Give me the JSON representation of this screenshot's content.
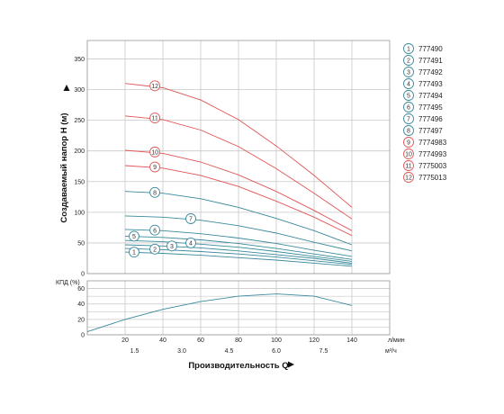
{
  "chart_data": [
    {
      "type": "line",
      "ylabel": "Создаваемый напор Н (м)",
      "ylim": [
        0,
        380
      ],
      "y_ticks": [
        "0",
        "50",
        "100",
        "150",
        "200",
        "250",
        "300",
        "350"
      ],
      "xlim_lpm": [
        0,
        160
      ],
      "grid": true,
      "legend_position": "right",
      "series": [
        {
          "name": "777490",
          "marker": "1",
          "color": "#3a8a9c",
          "x": [
            20,
            40,
            60,
            80,
            100,
            120,
            140
          ],
          "y": [
            35,
            33,
            30,
            26,
            22,
            17,
            12
          ]
        },
        {
          "name": "777491",
          "marker": "2",
          "color": "#3a8a9c",
          "x": [
            20,
            40,
            60,
            80,
            100,
            120,
            140
          ],
          "y": [
            41,
            39,
            36,
            32,
            27,
            21,
            15
          ]
        },
        {
          "name": "777492",
          "marker": "3",
          "color": "#3a8a9c",
          "x": [
            20,
            40,
            60,
            80,
            100,
            120,
            140
          ],
          "y": [
            47,
            45,
            42,
            37,
            31,
            25,
            17
          ]
        },
        {
          "name": "777493",
          "marker": "4",
          "color": "#3a8a9c",
          "x": [
            20,
            40,
            60,
            80,
            100,
            120,
            140
          ],
          "y": [
            54,
            52,
            48,
            43,
            36,
            28,
            20
          ]
        },
        {
          "name": "777494",
          "marker": "5",
          "color": "#3a8a9c",
          "x": [
            20,
            40,
            60,
            80,
            100,
            120,
            140
          ],
          "y": [
            61,
            59,
            55,
            49,
            41,
            32,
            23
          ]
        },
        {
          "name": "777495",
          "marker": "6",
          "color": "#3a8a9c",
          "x": [
            20,
            40,
            60,
            80,
            100,
            120,
            140
          ],
          "y": [
            72,
            70,
            65,
            58,
            49,
            38,
            28
          ]
        },
        {
          "name": "777496",
          "marker": "7",
          "color": "#3a8a9c",
          "x": [
            20,
            40,
            60,
            80,
            100,
            120,
            140
          ],
          "y": [
            94,
            92,
            87,
            78,
            66,
            51,
            37
          ]
        },
        {
          "name": "777497",
          "marker": "8",
          "color": "#3a8a9c",
          "x": [
            20,
            40,
            60,
            80,
            100,
            120,
            140
          ],
          "y": [
            134,
            131,
            122,
            108,
            90,
            70,
            47
          ]
        },
        {
          "name": "7774983",
          "marker": "9",
          "color": "#e05555",
          "x": [
            20,
            40,
            60,
            80,
            100,
            120,
            140
          ],
          "y": [
            176,
            172,
            160,
            142,
            118,
            92,
            62
          ]
        },
        {
          "name": "7774993",
          "marker": "10",
          "color": "#e05555",
          "x": [
            20,
            40,
            60,
            80,
            100,
            120,
            140
          ],
          "y": [
            201,
            196,
            182,
            161,
            134,
            103,
            70
          ]
        },
        {
          "name": "7775003",
          "marker": "11",
          "color": "#e05555",
          "x": [
            20,
            40,
            60,
            80,
            100,
            120,
            140
          ],
          "y": [
            257,
            251,
            234,
            207,
            171,
            131,
            89
          ]
        },
        {
          "name": "7775013",
          "marker": "12",
          "color": "#e05555",
          "x": [
            20,
            40,
            60,
            80,
            100,
            120,
            140
          ],
          "y": [
            310,
            303,
            283,
            251,
            208,
            160,
            108
          ]
        }
      ]
    },
    {
      "type": "line",
      "ylabel": "КПД (%)",
      "ylim": [
        0,
        70
      ],
      "y_ticks": [
        "0",
        "20",
        "40",
        "60"
      ],
      "xlabel": "Производительность Q",
      "x_ticks_lpm": [
        "20",
        "40",
        "60",
        "80",
        "100",
        "120",
        "140"
      ],
      "x_unit_lpm": "л/мин",
      "x_ticks_m3h": [
        "1.5",
        "3.0",
        "4.5",
        "6.0",
        "7.5"
      ],
      "x_unit_m3h": "м³/ч",
      "grid": true,
      "series": [
        {
          "color": "#3a8a9c",
          "x": [
            0,
            20,
            40,
            60,
            80,
            100,
            120,
            140
          ],
          "y": [
            4,
            20,
            33,
            43,
            50,
            53,
            50,
            38
          ]
        }
      ]
    }
  ],
  "legend": {
    "items": [
      {
        "marker": "1",
        "label": "777490",
        "color": "#3a8a9c"
      },
      {
        "marker": "2",
        "label": "777491",
        "color": "#3a8a9c"
      },
      {
        "marker": "3",
        "label": "777492",
        "color": "#3a8a9c"
      },
      {
        "marker": "4",
        "label": "777493",
        "color": "#3a8a9c"
      },
      {
        "marker": "5",
        "label": "777494",
        "color": "#3a8a9c"
      },
      {
        "marker": "6",
        "label": "777495",
        "color": "#3a8a9c"
      },
      {
        "marker": "7",
        "label": "777496",
        "color": "#3a8a9c"
      },
      {
        "marker": "8",
        "label": "777497",
        "color": "#3a8a9c"
      },
      {
        "marker": "9",
        "label": "7774983",
        "color": "#e05555"
      },
      {
        "marker": "10",
        "label": "7774993",
        "color": "#e05555"
      },
      {
        "marker": "11",
        "label": "7775003",
        "color": "#e05555"
      },
      {
        "marker": "12",
        "label": "7775013",
        "color": "#e05555"
      }
    ]
  },
  "colors": {
    "grid": "#c8c8c8",
    "frame": "#999999",
    "teal": "#3a8a9c",
    "red": "#e05555"
  }
}
